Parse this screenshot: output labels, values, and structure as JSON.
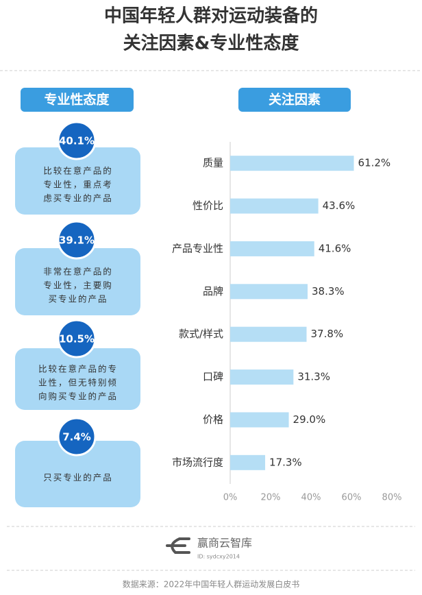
{
  "title": [
    "中国年轻人群对运动装备的",
    "关注因素&专业性态度"
  ],
  "attitude": {
    "header": "专业性态度",
    "items": [
      {
        "percent": "40.1%",
        "text": [
          "比较在意产品的",
          "专业性，重点考",
          "虑买专业的产品"
        ]
      },
      {
        "percent": "39.1%",
        "text": [
          "非常在意产品的",
          "专业性，主要购",
          "买专业的产品"
        ]
      },
      {
        "percent": "10.5%",
        "text": [
          "比较在意产品的专",
          "业性，但无特别倾",
          "向购买专业的产品"
        ]
      },
      {
        "percent": "7.4%",
        "text": [
          "只买专业的产品"
        ]
      }
    ]
  },
  "chart_data": {
    "type": "bar",
    "orientation": "horizontal",
    "header": "关注因素",
    "categories": [
      "质量",
      "性价比",
      "产品专业性",
      "品牌",
      "款式/样式",
      "口碑",
      "价格",
      "市场流行度"
    ],
    "values": [
      61.2,
      43.6,
      41.6,
      38.3,
      37.8,
      31.3,
      29.0,
      17.3
    ],
    "value_labels": [
      "61.2%",
      "43.6%",
      "41.6%",
      "38.3%",
      "37.8%",
      "31.3%",
      "29.0%",
      "17.3%"
    ],
    "color": "#b5def5",
    "xlim": [
      0,
      80
    ],
    "xticks": [
      {
        "value": 0,
        "label": "0%"
      },
      {
        "value": 20,
        "label": "20%"
      },
      {
        "value": 40,
        "label": "40%"
      },
      {
        "value": 60,
        "label": "60%"
      },
      {
        "value": 80,
        "label": "80%"
      }
    ],
    "grid": false
  },
  "brand": {
    "name": "赢商云智库",
    "id": "ID: sydcxy2014"
  },
  "source": "数据来源：2022年中国年轻人群运动发展白皮书"
}
